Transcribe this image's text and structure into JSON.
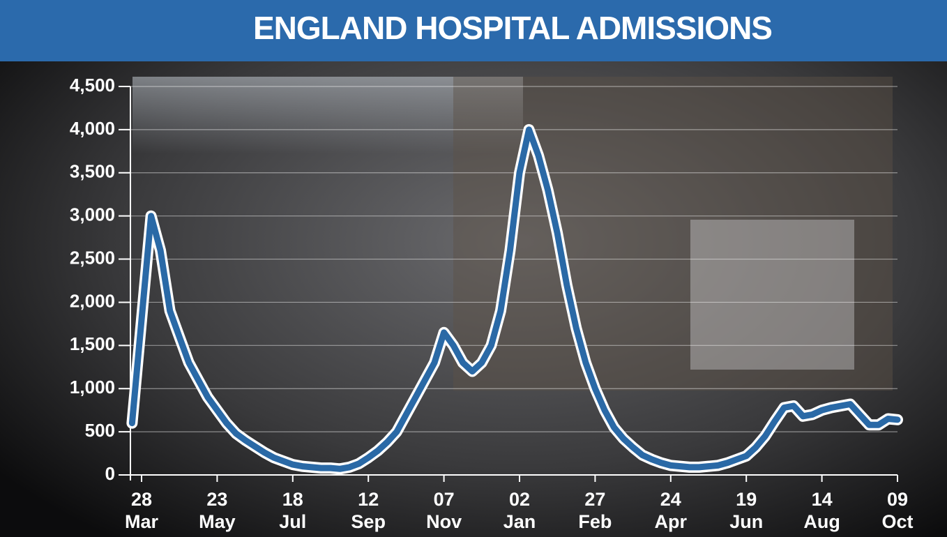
{
  "chart_data": {
    "type": "line",
    "title": "ENGLAND HOSPITAL ADMISSIONS",
    "x": [
      "21 Mar",
      "28 Mar",
      "04 Apr",
      "11 Apr",
      "18 Apr",
      "25 Apr",
      "02 May",
      "09 May",
      "16 May",
      "23 May",
      "30 May",
      "06 Jun",
      "13 Jun",
      "20 Jun",
      "27 Jun",
      "04 Jul",
      "11 Jul",
      "18 Jul",
      "25 Jul",
      "01 Aug",
      "08 Aug",
      "15 Aug",
      "22 Aug",
      "29 Aug",
      "05 Sep",
      "12 Sep",
      "19 Sep",
      "26 Sep",
      "03 Oct",
      "10 Oct",
      "17 Oct",
      "24 Oct",
      "31 Oct",
      "07 Nov",
      "14 Nov",
      "21 Nov",
      "28 Nov",
      "05 Dec",
      "12 Dec",
      "19 Dec",
      "26 Dec",
      "02 Jan",
      "09 Jan",
      "16 Jan",
      "23 Jan",
      "30 Jan",
      "06 Feb",
      "13 Feb",
      "20 Feb",
      "27 Feb",
      "06 Mar",
      "13 Mar",
      "20 Mar",
      "27 Mar",
      "03 Apr",
      "10 Apr",
      "17 Apr",
      "24 Apr",
      "01 May",
      "08 May",
      "15 May",
      "22 May",
      "29 May",
      "05 Jun",
      "12 Jun",
      "19 Jun",
      "26 Jun",
      "03 Jul",
      "10 Jul",
      "17 Jul",
      "24 Jul",
      "31 Jul",
      "07 Aug",
      "14 Aug",
      "21 Aug",
      "28 Aug",
      "04 Sep",
      "11 Sep",
      "18 Sep",
      "25 Sep",
      "02 Oct",
      "09 Oct"
    ],
    "values": [
      600,
      1800,
      3000,
      2600,
      1900,
      1600,
      1300,
      1100,
      900,
      750,
      600,
      480,
      400,
      330,
      260,
      200,
      160,
      120,
      100,
      90,
      80,
      80,
      70,
      90,
      130,
      200,
      280,
      380,
      500,
      700,
      900,
      1100,
      1300,
      1650,
      1500,
      1300,
      1200,
      1300,
      1500,
      1900,
      2600,
      3500,
      4000,
      3700,
      3300,
      2800,
      2200,
      1700,
      1300,
      1000,
      750,
      550,
      420,
      320,
      230,
      180,
      140,
      110,
      100,
      90,
      90,
      100,
      110,
      140,
      180,
      220,
      320,
      450,
      620,
      780,
      800,
      680,
      700,
      750,
      780,
      800,
      820,
      700,
      580,
      580,
      650,
      640
    ],
    "color": "#2a69a6",
    "xticks": [
      "28 Mar",
      "23 May",
      "18 Jul",
      "12 Sep",
      "07 Nov",
      "02 Jan",
      "27 Feb",
      "24 Apr",
      "19 Jun",
      "14 Aug",
      "09 Oct"
    ],
    "ylim": [
      0,
      4500
    ],
    "yticks": [
      0,
      {
        "value": 500,
        "label": "500"
      },
      {
        "value": 1000,
        "label": "1,000"
      },
      {
        "value": 1500,
        "label": "1,500"
      },
      {
        "value": 2000,
        "label": "2,000"
      },
      {
        "value": 2500,
        "label": "2,500"
      },
      {
        "value": 3000,
        "label": "3,000"
      },
      {
        "value": 3500,
        "label": "3,500"
      },
      {
        "value": 4000,
        "label": "4,000"
      },
      {
        "value": 4500,
        "label": "4,500"
      }
    ],
    "grid": true
  }
}
